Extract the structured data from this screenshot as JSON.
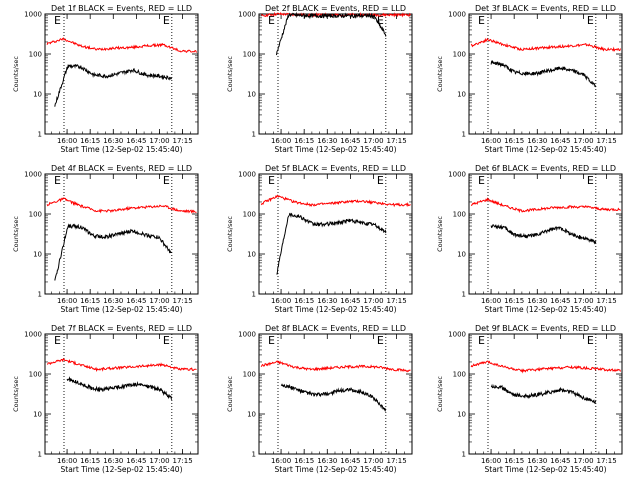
{
  "chart_data": [
    {
      "type": "line",
      "title": "Det 1f BLACK = Events, RED = LLD",
      "xlabel": "Start Time (12-Sep-02 15:45:40)",
      "ylabel": "Counts/sec",
      "ylim": [
        1,
        1000
      ],
      "yscale": "log",
      "yticks": [
        "1",
        "10",
        "100",
        "1000"
      ],
      "xticks": [
        "16:00",
        "16:15",
        "16:30",
        "16:45",
        "17:00",
        "17:15"
      ],
      "series": [
        {
          "color": "#ff0000",
          "start": "15:47",
          "end": "17:24",
          "values": [
            180,
            240,
            160,
            130,
            140,
            145,
            160,
            170,
            120,
            115
          ]
        },
        {
          "color": "#000000",
          "start": "15:52",
          "end": "17:08",
          "values": [
            5,
            50,
            48,
            30,
            28,
            33,
            40,
            30,
            28,
            25
          ]
        }
      ]
    },
    {
      "type": "line",
      "title": "Det 2f BLACK = Events, RED = LLD",
      "xlabel": "Start Time (12-Sep-02 15:45:40)",
      "ylabel": "Counts/sec",
      "ylim": [
        1,
        1000
      ],
      "yscale": "log",
      "yticks": [
        "1",
        "10",
        "100",
        "1000"
      ],
      "xticks": [
        "16:00",
        "16:15",
        "16:30",
        "16:45",
        "17:00",
        "17:15"
      ],
      "series": [
        {
          "color": "#ff0000",
          "start": "15:47",
          "end": "17:24",
          "values": [
            900,
            1000,
            960,
            950,
            950,
            950,
            950,
            950,
            950,
            950
          ]
        },
        {
          "color": "#000000",
          "start": "15:57",
          "end": "17:08",
          "values": [
            100,
            960,
            920,
            900,
            900,
            900,
            900,
            900,
            900,
            300
          ]
        }
      ]
    },
    {
      "type": "line",
      "title": "Det 3f BLACK = Events, RED = LLD",
      "xlabel": "Start Time (12-Sep-02 15:45:40)",
      "ylabel": "Counts/sec",
      "ylim": [
        1,
        1000
      ],
      "yscale": "log",
      "yticks": [
        "1",
        "10",
        "100",
        "1000"
      ],
      "xticks": [
        "16:00",
        "16:15",
        "16:30",
        "16:45",
        "17:00",
        "17:15"
      ],
      "series": [
        {
          "color": "#ff0000",
          "start": "15:47",
          "end": "17:24",
          "values": [
            160,
            230,
            170,
            130,
            140,
            150,
            160,
            170,
            130,
            130
          ]
        },
        {
          "color": "#000000",
          "start": "16:00",
          "end": "17:08",
          "values": [
            60,
            55,
            35,
            32,
            33,
            38,
            45,
            38,
            30,
            15
          ]
        }
      ]
    },
    {
      "type": "line",
      "title": "Det 4f BLACK = Events, RED = LLD",
      "xlabel": "Start Time (12-Sep-02 15:45:40)",
      "ylabel": "Counts/sec",
      "ylim": [
        1,
        1000
      ],
      "yscale": "log",
      "yticks": [
        "1",
        "10",
        "100",
        "1000"
      ],
      "xticks": [
        "16:00",
        "16:15",
        "16:30",
        "16:45",
        "17:00",
        "17:15"
      ],
      "series": [
        {
          "color": "#ff0000",
          "start": "15:47",
          "end": "17:24",
          "values": [
            170,
            240,
            160,
            120,
            120,
            140,
            150,
            160,
            120,
            115
          ]
        },
        {
          "color": "#000000",
          "start": "15:52",
          "end": "17:08",
          "values": [
            2,
            50,
            48,
            28,
            27,
            32,
            38,
            30,
            26,
            10
          ]
        }
      ]
    },
    {
      "type": "line",
      "title": "Det 5f BLACK = Events, RED = LLD",
      "xlabel": "Start Time (12-Sep-02 15:45:40)",
      "ylabel": "Counts/sec",
      "ylim": [
        1,
        1000
      ],
      "yscale": "log",
      "yticks": [
        "1",
        "10",
        "100",
        "1000"
      ],
      "xticks": [
        "16:00",
        "16:15",
        "16:30",
        "16:45",
        "17:00",
        "17:15"
      ],
      "series": [
        {
          "color": "#ff0000",
          "start": "15:47",
          "end": "17:24",
          "values": [
            180,
            280,
            200,
            170,
            180,
            200,
            210,
            190,
            170,
            170
          ]
        },
        {
          "color": "#000000",
          "start": "15:57",
          "end": "17:08",
          "values": [
            3,
            100,
            85,
            55,
            55,
            60,
            70,
            60,
            55,
            35
          ]
        }
      ]
    },
    {
      "type": "line",
      "title": "Det 6f BLACK = Events, RED = LLD",
      "xlabel": "Start Time (12-Sep-02 15:45:40)",
      "ylabel": "Counts/sec",
      "ylim": [
        1,
        1000
      ],
      "yscale": "log",
      "yticks": [
        "1",
        "10",
        "100",
        "1000"
      ],
      "xticks": [
        "16:00",
        "16:15",
        "16:30",
        "16:45",
        "17:00",
        "17:15"
      ],
      "series": [
        {
          "color": "#ff0000",
          "start": "15:47",
          "end": "17:24",
          "values": [
            170,
            230,
            160,
            120,
            130,
            145,
            150,
            150,
            130,
            130
          ]
        },
        {
          "color": "#000000",
          "start": "16:00",
          "end": "17:08",
          "values": [
            50,
            48,
            30,
            28,
            30,
            40,
            45,
            30,
            25,
            20
          ]
        }
      ]
    },
    {
      "type": "line",
      "title": "Det 7f BLACK = Events, RED = LLD",
      "xlabel": "Start Time (12-Sep-02 15:45:40)",
      "ylabel": "Counts/sec",
      "ylim": [
        1,
        1000
      ],
      "yscale": "log",
      "yticks": [
        "1",
        "10",
        "100",
        "1000"
      ],
      "xticks": [
        "16:00",
        "16:15",
        "16:30",
        "16:45",
        "17:00",
        "17:15"
      ],
      "series": [
        {
          "color": "#ff0000",
          "start": "15:47",
          "end": "17:24",
          "values": [
            180,
            230,
            170,
            130,
            140,
            150,
            160,
            170,
            130,
            130
          ]
        },
        {
          "color": "#000000",
          "start": "16:00",
          "end": "17:08",
          "values": [
            75,
            60,
            45,
            40,
            45,
            50,
            55,
            50,
            40,
            25
          ]
        }
      ]
    },
    {
      "type": "line",
      "title": "Det 8f BLACK = Events, RED = LLD",
      "xlabel": "Start Time (12-Sep-02 15:45:40)",
      "ylabel": "Counts/sec",
      "ylim": [
        1,
        1000
      ],
      "yscale": "log",
      "yticks": [
        "1",
        "10",
        "100",
        "1000"
      ],
      "xticks": [
        "16:00",
        "16:15",
        "16:30",
        "16:45",
        "17:00",
        "17:15"
      ],
      "series": [
        {
          "color": "#ff0000",
          "start": "15:47",
          "end": "17:24",
          "values": [
            160,
            200,
            150,
            130,
            140,
            150,
            155,
            150,
            130,
            120
          ]
        },
        {
          "color": "#000000",
          "start": "16:00",
          "end": "17:08",
          "values": [
            55,
            45,
            35,
            30,
            32,
            38,
            40,
            35,
            25,
            12
          ]
        }
      ]
    },
    {
      "type": "line",
      "title": "Det 9f BLACK = Events, RED = LLD",
      "xlabel": "Start Time (12-Sep-02 15:45:40)",
      "ylabel": "Counts/sec",
      "ylim": [
        1,
        1000
      ],
      "yscale": "log",
      "yticks": [
        "1",
        "10",
        "100",
        "1000"
      ],
      "xticks": [
        "16:00",
        "16:15",
        "16:30",
        "16:45",
        "17:00",
        "17:15"
      ],
      "series": [
        {
          "color": "#ff0000",
          "start": "15:47",
          "end": "17:24",
          "values": [
            160,
            200,
            150,
            120,
            130,
            140,
            150,
            140,
            130,
            120
          ]
        },
        {
          "color": "#000000",
          "start": "16:00",
          "end": "17:08",
          "values": [
            50,
            45,
            30,
            28,
            30,
            35,
            40,
            35,
            25,
            20
          ]
        }
      ]
    }
  ],
  "marker_label": "E",
  "marker_times": [
    "15:58",
    "17:08"
  ]
}
